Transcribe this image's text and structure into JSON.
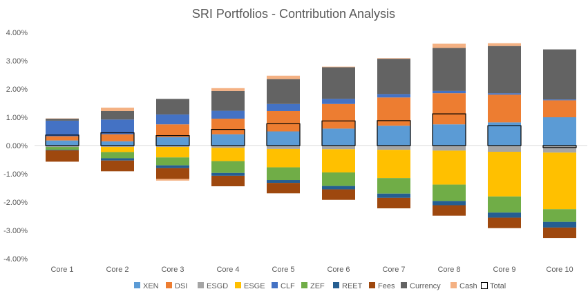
{
  "chart_data": {
    "type": "bar",
    "stacked": true,
    "title": "SRI Portfolios - Contribution Analysis",
    "xlabel": "",
    "ylabel": "",
    "categories": [
      "Core 1",
      "Core 2",
      "Core 3",
      "Core 4",
      "Core 5",
      "Core 6",
      "Core 7",
      "Core 8",
      "Core 9",
      "Core 10"
    ],
    "ylim": [
      -0.04,
      0.04
    ],
    "yticks": [
      0.04,
      0.03,
      0.02,
      0.01,
      0,
      -0.01,
      -0.02,
      -0.03,
      -0.04
    ],
    "ytick_labels": [
      "4.00%",
      "3.00%",
      "2.00%",
      "1.00%",
      "0.00%",
      "-1.00%",
      "-2.00%",
      "-3.00%",
      "-4.00%"
    ],
    "grid": false,
    "legend_position": "bottom",
    "series": [
      {
        "name": "XEN",
        "color": "#5B9BD5",
        "values": [
          0.0018,
          0.0015,
          0.003,
          0.004,
          0.005,
          0.006,
          0.007,
          0.0075,
          0.0082,
          0.01
        ]
      },
      {
        "name": "DSI",
        "color": "#ED7D31",
        "values": [
          0.0015,
          0.0025,
          0.0045,
          0.0055,
          0.0072,
          0.0087,
          0.01,
          0.011,
          0.0098,
          0.006
        ]
      },
      {
        "name": "ESGD",
        "color": "#A5A5A5",
        "values": [
          -0.0005,
          -0.0005,
          -0.0005,
          -0.0008,
          -0.0012,
          -0.0013,
          -0.0015,
          -0.0018,
          -0.0022,
          -0.0025
        ]
      },
      {
        "name": "ESGE",
        "color": "#FFC000",
        "values": [
          0,
          -0.0018,
          -0.0037,
          -0.0047,
          -0.0065,
          -0.0082,
          -0.01,
          -0.012,
          -0.0158,
          -0.02
        ]
      },
      {
        "name": "CLF",
        "color": "#4472C4",
        "values": [
          0.0055,
          0.0052,
          0.0035,
          0.0028,
          0.0025,
          0.0018,
          0.0012,
          0.0008,
          0.0005,
          0.0003
        ]
      },
      {
        "name": "ZEF",
        "color": "#70AD47",
        "values": [
          -0.001,
          -0.0022,
          -0.0028,
          -0.0042,
          -0.0045,
          -0.0048,
          -0.0055,
          -0.0058,
          -0.0057,
          -0.0045
        ]
      },
      {
        "name": "REET",
        "color": "#255E91",
        "values": [
          -0.0002,
          -0.0008,
          -0.001,
          -0.001,
          -0.001,
          -0.0012,
          -0.0015,
          -0.0015,
          -0.0018,
          -0.002
        ]
      },
      {
        "name": "Fees",
        "color": "#9E480E",
        "values": [
          -0.004,
          -0.0038,
          -0.0038,
          -0.0037,
          -0.0037,
          -0.0037,
          -0.0037,
          -0.0037,
          -0.0037,
          -0.0037
        ]
      },
      {
        "name": "Currency",
        "color": "#636363",
        "values": [
          0.0007,
          0.003,
          0.0055,
          0.007,
          0.0088,
          0.0112,
          0.0125,
          0.0152,
          0.0167,
          0.0177
        ]
      },
      {
        "name": "Cash",
        "color": "#F4B183",
        "values": [
          0.0001,
          0.0012,
          -0.0006,
          0.001,
          0.0012,
          0.0002,
          0.0002,
          0.0015,
          0.001,
          0
        ]
      },
      {
        "name": "Total",
        "color": "#000000",
        "values": [
          0.0037,
          0.0045,
          0.0035,
          0.0057,
          0.0077,
          0.0087,
          0.0088,
          0.0112,
          0.007,
          -0.0007
        ]
      }
    ]
  }
}
